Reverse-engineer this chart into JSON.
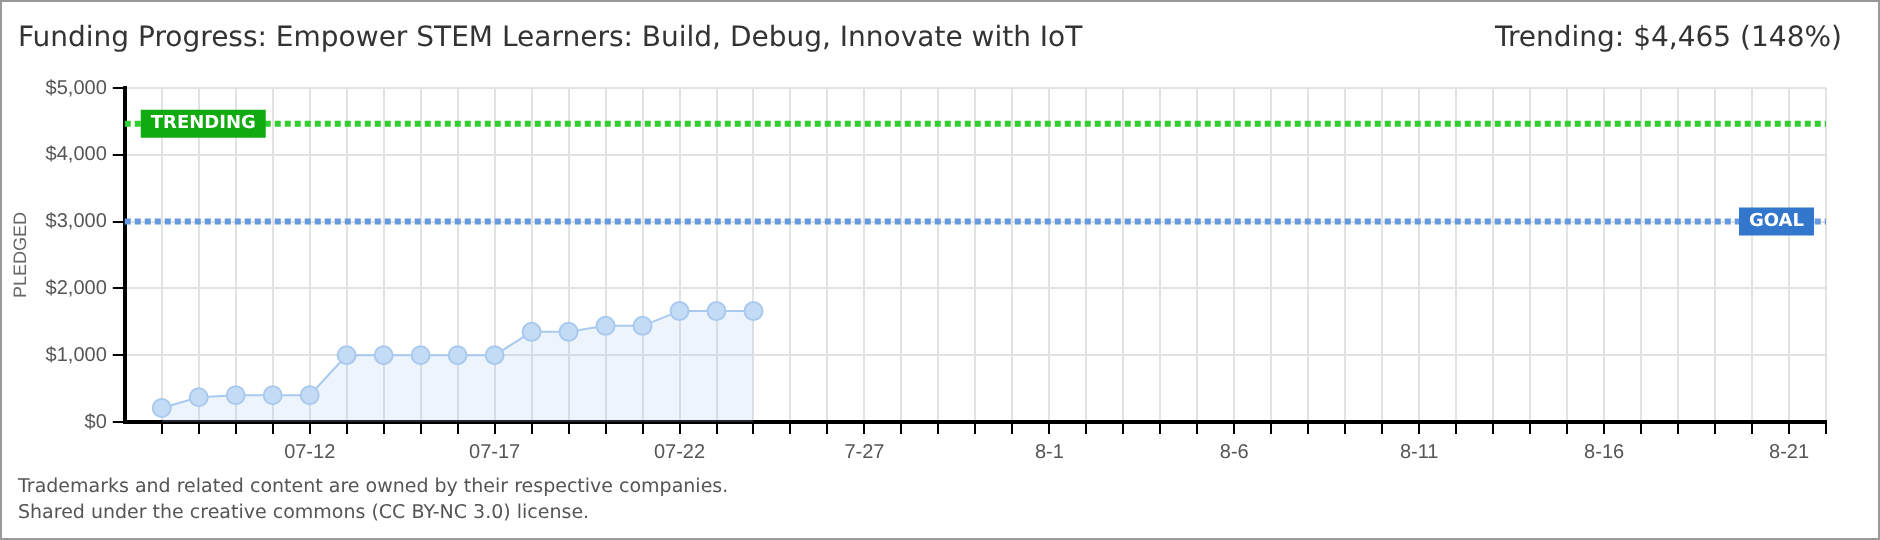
{
  "chart_data": {
    "type": "area",
    "title": "Funding Progress: Empower STEM Learners: Build, Debug, Innovate with IoT",
    "ylabel": "PLEDGED",
    "annotations": [
      "Trending: $4,465 (148%)",
      "Trademarks and related content are owned by their respective companies.",
      "Shared under the creative commons (CC BY-NC 3.0) license."
    ],
    "x": [
      "--07-08",
      "--07-09",
      "--07-10",
      "--07-11",
      "--07-12",
      "--07-13",
      "--07-14",
      "--07-15",
      "--07-16",
      "--07-17",
      "--07-18",
      "--07-19",
      "--07-20",
      "--07-21",
      "--07-22",
      "--07-23",
      "--07-24"
    ],
    "series": [
      {
        "color": "#a9c9ee",
        "values": [
          210,
          370,
          400,
          400,
          400,
          1000,
          1000,
          1000,
          1000,
          1000,
          1350,
          1350,
          1440,
          1440,
          1660,
          1660,
          1660
        ]
      }
    ],
    "xlim": [
      "--07-07",
      "--08-22"
    ],
    "xticks": [
      {
        "value": "--07-08",
        "label": null
      },
      {
        "value": "--07-09",
        "label": null
      },
      {
        "value": "--07-10",
        "label": null
      },
      {
        "value": "--07-11",
        "label": null
      },
      {
        "value": "--07-12",
        "label": "07-12"
      },
      {
        "value": "--07-13",
        "label": null
      },
      {
        "value": "--07-14",
        "label": null
      },
      {
        "value": "--07-15",
        "label": null
      },
      {
        "value": "--07-16",
        "label": null
      },
      {
        "value": "--07-17",
        "label": "07-17"
      },
      {
        "value": "--07-18",
        "label": null
      },
      {
        "value": "--07-19",
        "label": null
      },
      {
        "value": "--07-20",
        "label": null
      },
      {
        "value": "--07-21",
        "label": null
      },
      {
        "value": "--07-22",
        "label": "07-22"
      },
      {
        "value": "--07-23",
        "label": null
      },
      {
        "value": "--07-24",
        "label": null
      },
      {
        "value": "--07-25",
        "label": null
      },
      {
        "value": "--07-26",
        "label": null
      },
      {
        "value": "--07-27",
        "label": "7-27"
      },
      {
        "value": "--07-28",
        "label": null
      },
      {
        "value": "--07-29",
        "label": null
      },
      {
        "value": "--07-30",
        "label": null
      },
      {
        "value": "--07-31",
        "label": null
      },
      {
        "value": "--08-01",
        "label": "8-1"
      },
      {
        "value": "--08-02",
        "label": null
      },
      {
        "value": "--08-03",
        "label": null
      },
      {
        "value": "--08-04",
        "label": null
      },
      {
        "value": "--08-05",
        "label": null
      },
      {
        "value": "--08-06",
        "label": "8-6"
      },
      {
        "value": "--08-07",
        "label": null
      },
      {
        "value": "--08-08",
        "label": null
      },
      {
        "value": "--08-09",
        "label": null
      },
      {
        "value": "--08-10",
        "label": null
      },
      {
        "value": "--08-11",
        "label": "8-11"
      },
      {
        "value": "--08-12",
        "label": null
      },
      {
        "value": "--08-13",
        "label": null
      },
      {
        "value": "--08-14",
        "label": null
      },
      {
        "value": "--08-15",
        "label": null
      },
      {
        "value": "--08-16",
        "label": "8-16"
      },
      {
        "value": "--08-17",
        "label": null
      },
      {
        "value": "--08-18",
        "label": null
      },
      {
        "value": "--08-19",
        "label": null
      },
      {
        "value": "--08-20",
        "label": null
      },
      {
        "value": "--08-21",
        "label": "8-21"
      },
      {
        "value": "--08-22",
        "label": null
      }
    ],
    "ylim": [
      0,
      5000
    ],
    "yticks": [
      {
        "value": 0,
        "label": "$0"
      },
      {
        "value": 1000,
        "label": "$1,000"
      },
      {
        "value": 2000,
        "label": "$2,000"
      },
      {
        "value": 3000,
        "label": "$3,000"
      },
      {
        "value": 4000,
        "label": "$4,000"
      },
      {
        "value": 5000,
        "label": "$5,000"
      }
    ],
    "ref_lines": [
      {
        "axis": "y",
        "value": 4465,
        "label": "TRENDING",
        "color": "#33cc33",
        "line_style": "dotted"
      },
      {
        "axis": "y",
        "value": 3000,
        "label": "GOAL",
        "color": "#6699dd",
        "line_style": "dotted"
      }
    ],
    "grid": true,
    "marker": "circle",
    "legend": false
  }
}
